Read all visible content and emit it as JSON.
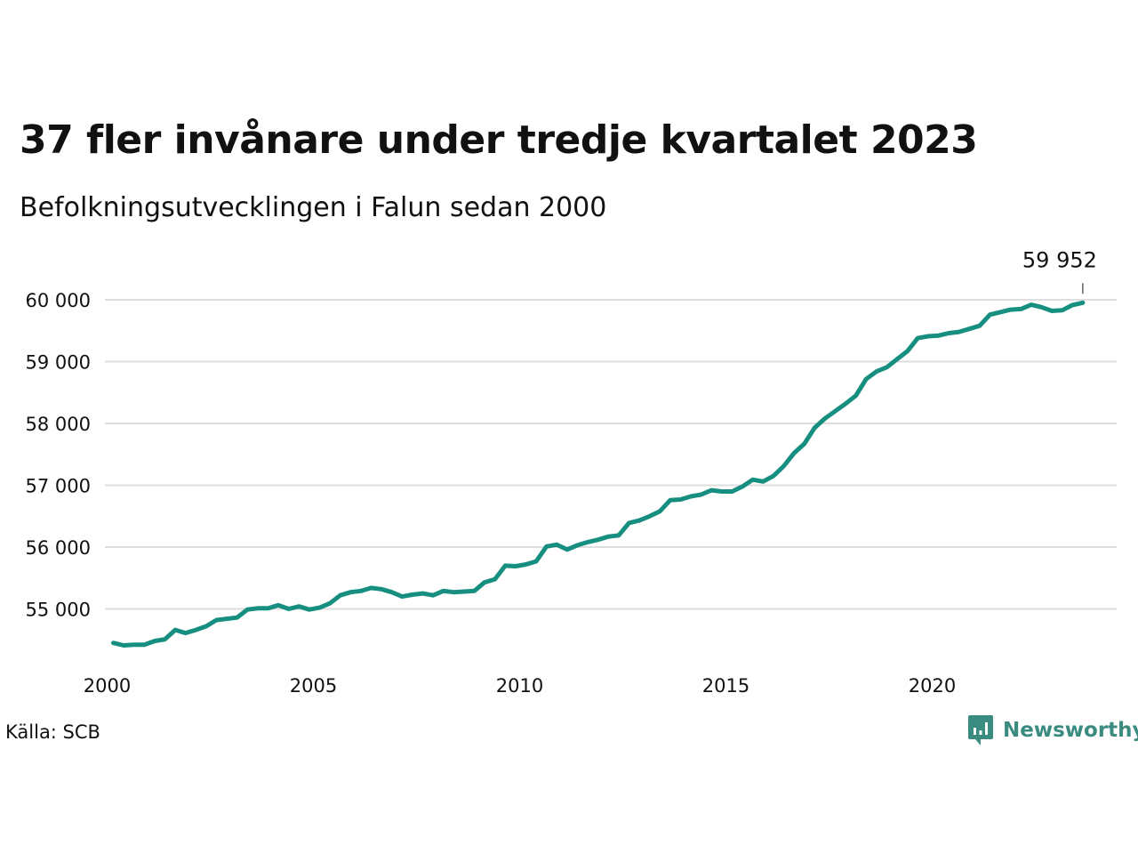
{
  "colors": {
    "line": "#178f80",
    "grid": "#dedede",
    "brand": "#3a8c80",
    "text": "#111111"
  },
  "chart_data": {
    "type": "line",
    "title": "37 fler invånare under tredje kvartalet 2023",
    "subtitle": "Befolkningsutvecklingen i Falun sedan 2000",
    "source": "Källa: SCB",
    "brand": "Newsworthy",
    "ylim": [
      54000,
      60300
    ],
    "xlim": [
      2000.0,
      2024.5
    ],
    "y_ticks": [
      55000,
      56000,
      57000,
      58000,
      59000,
      60000
    ],
    "y_tick_labels": [
      "55 000",
      "56 000",
      "57 000",
      "58 000",
      "59 000",
      "60 000"
    ],
    "x_ticks": [
      2000,
      2005,
      2010,
      2015,
      2020
    ],
    "x_tick_labels": [
      "2000",
      "2005",
      "2010",
      "2015",
      "2020"
    ],
    "grid": true,
    "end_label": "59 952",
    "series": [
      {
        "x": [
          2000.0,
          2000.25,
          2000.5,
          2000.75,
          2001.0,
          2001.25,
          2001.5,
          2001.75,
          2002.0,
          2002.25,
          2002.5,
          2002.75,
          2003.0,
          2003.25,
          2003.5,
          2003.75,
          2004.0,
          2004.25,
          2004.5,
          2004.75,
          2005.0,
          2005.25,
          2005.5,
          2005.75,
          2006.0,
          2006.25,
          2006.5,
          2006.75,
          2007.0,
          2007.25,
          2007.5,
          2007.75,
          2008.0,
          2008.25,
          2008.5,
          2008.75,
          2009.0,
          2009.25,
          2009.5,
          2009.75,
          2010.0,
          2010.25,
          2010.5,
          2010.75,
          2011.0,
          2011.25,
          2011.5,
          2011.75,
          2012.0,
          2012.25,
          2012.5,
          2012.75,
          2013.0,
          2013.25,
          2013.5,
          2013.75,
          2014.0,
          2014.25,
          2014.5,
          2014.75,
          2015.0,
          2015.25,
          2015.5,
          2015.75,
          2016.0,
          2016.25,
          2016.5,
          2016.75,
          2017.0,
          2017.25,
          2017.5,
          2017.75,
          2018.0,
          2018.25,
          2018.5,
          2018.75,
          2019.0,
          2019.25,
          2019.5,
          2019.75,
          2020.0,
          2020.25,
          2020.5,
          2020.75,
          2021.0,
          2021.25,
          2021.5,
          2021.75,
          2022.0,
          2022.25,
          2022.5,
          2022.75,
          2023.0,
          2023.25,
          2023.5
        ],
        "values": [
          54450,
          54410,
          54420,
          54420,
          54480,
          54510,
          54660,
          54610,
          54660,
          54720,
          54820,
          54840,
          54860,
          54990,
          55010,
          55010,
          55060,
          55000,
          55040,
          54990,
          55020,
          55090,
          55220,
          55270,
          55290,
          55340,
          55320,
          55270,
          55200,
          55230,
          55250,
          55220,
          55290,
          55270,
          55280,
          55290,
          55430,
          55480,
          55700,
          55690,
          55720,
          55770,
          56010,
          56040,
          55960,
          56030,
          56080,
          56120,
          56170,
          56190,
          56390,
          56430,
          56500,
          56580,
          56760,
          56770,
          56820,
          56850,
          56920,
          56900,
          56900,
          56980,
          57090,
          57060,
          57150,
          57310,
          57520,
          57670,
          57930,
          58080,
          58200,
          58320,
          58450,
          58720,
          58840,
          58910,
          59040,
          59170,
          59380,
          59410,
          59420,
          59460,
          59480,
          59530,
          59580,
          59760,
          59800,
          59840,
          59850,
          59920,
          59880,
          59820,
          59830,
          59915,
          59952
        ]
      }
    ]
  }
}
